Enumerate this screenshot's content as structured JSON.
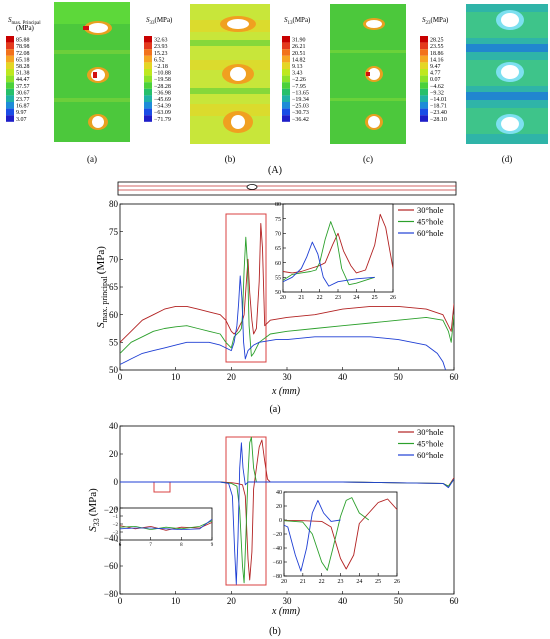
{
  "panel_A": {
    "label": "(A)",
    "sub_labels": [
      "(a)",
      "(b)",
      "(c)",
      "(d)"
    ],
    "contours": [
      {
        "title_main": "S",
        "title_sub": "max. Principal",
        "unit": "(MPa)",
        "palette": "green-red",
        "values": [
          "85.88",
          "78.98",
          "72.08",
          "65.18",
          "58.28",
          "51.38",
          "44.47",
          "37.57",
          "30.67",
          "23.77",
          "16.87",
          "9.97",
          "3.07"
        ],
        "colors": [
          "#c80000",
          "#e43b1e",
          "#f2721c",
          "#f6a623",
          "#e4d624",
          "#bfe81f",
          "#8fe22a",
          "#4cd13a",
          "#26c06a",
          "#20b2a6",
          "#1e8cd8",
          "#1a4de6",
          "#1e1ec8"
        ]
      },
      {
        "title_main": "S",
        "title_sub": "33",
        "unit": "(MPa)",
        "palette": "green-yellow",
        "values": [
          "32.63",
          "23.93",
          "15.23",
          "6.52",
          "−2.18",
          "−10.88",
          "−19.58",
          "−28.28",
          "−36.98",
          "−45.69",
          "−54.39",
          "−63.09",
          "−71.79"
        ],
        "colors": [
          "#c80000",
          "#e43b1e",
          "#f2721c",
          "#f6a623",
          "#e4d624",
          "#bfe81f",
          "#8fe22a",
          "#4cd13a",
          "#26c06a",
          "#20b2a6",
          "#1e8cd8",
          "#1a4de6",
          "#1e1ec8"
        ]
      },
      {
        "title_main": "S",
        "title_sub": "13",
        "unit": "(MPa)",
        "palette": "green",
        "values": [
          "31.90",
          "26.21",
          "20.51",
          "14.82",
          "9.13",
          "3.43",
          "−2.26",
          "−7.95",
          "−13.65",
          "−19.34",
          "−25.03",
          "−30.73",
          "−36.42"
        ],
        "colors": [
          "#c80000",
          "#e43b1e",
          "#f2721c",
          "#f6a623",
          "#e4d624",
          "#bfe81f",
          "#8fe22a",
          "#4cd13a",
          "#26c06a",
          "#20b2a6",
          "#1e8cd8",
          "#1a4de6",
          "#1e1ec8"
        ]
      },
      {
        "title_main": "S",
        "title_sub": "23",
        "unit": "(MPa)",
        "palette": "cyan-blue",
        "values": [
          "28.25",
          "23.55",
          "18.86",
          "14.16",
          "9.47",
          "4.77",
          "0.07",
          "−4.62",
          "−9.32",
          "−14.01",
          "−18.71",
          "−23.40",
          "−28.10"
        ],
        "colors": [
          "#c80000",
          "#e43b1e",
          "#f2721c",
          "#f6a623",
          "#e4d624",
          "#bfe81f",
          "#8fe22a",
          "#4cd13a",
          "#26c06a",
          "#20b2a6",
          "#1e8cd8",
          "#1a4de6",
          "#1e1ec8"
        ]
      }
    ]
  },
  "chart_data": [
    {
      "type": "line",
      "panel_label": "(a)",
      "xlabel": "x (mm)",
      "ylabel_main": "S",
      "ylabel_sub": "max. principal",
      "ylabel_unit": "(MPa)",
      "xlim": [
        0,
        60
      ],
      "ylim": [
        50,
        80
      ],
      "xticks": [
        "0",
        "10",
        "20",
        "30",
        "40",
        "50",
        "60"
      ],
      "yticks": [
        "50",
        "55",
        "60",
        "65",
        "70",
        "75",
        "80"
      ],
      "highlight_box_x": [
        19,
        26
      ],
      "legend_position": "top-right",
      "series": [
        {
          "name": "30°hole",
          "color": "#b22222",
          "points": [
            [
              0,
              55
            ],
            [
              2,
              57
            ],
            [
              4,
              59
            ],
            [
              6,
              60
            ],
            [
              8,
              61
            ],
            [
              10,
              61.5
            ],
            [
              12,
              61.5
            ],
            [
              14,
              61
            ],
            [
              16,
              60.5
            ],
            [
              18,
              60
            ],
            [
              19,
              59
            ],
            [
              20,
              57
            ],
            [
              20.5,
              56.5
            ],
            [
              21,
              57
            ],
            [
              21.5,
              58
            ],
            [
              22,
              59
            ],
            [
              22.3,
              60
            ],
            [
              22.7,
              66
            ],
            [
              23,
              70
            ],
            [
              23.3,
              64
            ],
            [
              23.7,
              59
            ],
            [
              24,
              56.5
            ],
            [
              24.5,
              57.5
            ],
            [
              25,
              66
            ],
            [
              25.3,
              76.5
            ],
            [
              25.6,
              72
            ],
            [
              26,
              58
            ],
            [
              27,
              59
            ],
            [
              30,
              59.5
            ],
            [
              35,
              60
            ],
            [
              40,
              61
            ],
            [
              45,
              61.5
            ],
            [
              50,
              61.5
            ],
            [
              55,
              61
            ],
            [
              58,
              60
            ],
            [
              59,
              58
            ],
            [
              59.5,
              57
            ],
            [
              60,
              62
            ]
          ]
        },
        {
          "name": "45°hole",
          "color": "#2ca02c",
          "points": [
            [
              0,
              53
            ],
            [
              2,
              55
            ],
            [
              4,
              56
            ],
            [
              6,
              57
            ],
            [
              8,
              57.5
            ],
            [
              10,
              57.8
            ],
            [
              12,
              58
            ],
            [
              14,
              57.5
            ],
            [
              16,
              57
            ],
            [
              18,
              56.5
            ],
            [
              19,
              55
            ],
            [
              20,
              54
            ],
            [
              20.5,
              56
            ],
            [
              21,
              56.5
            ],
            [
              21.5,
              57
            ],
            [
              21.8,
              57.5
            ],
            [
              22,
              60
            ],
            [
              22.3,
              68
            ],
            [
              22.6,
              74
            ],
            [
              22.9,
              69
            ],
            [
              23.2,
              58
            ],
            [
              23.6,
              52.5
            ],
            [
              24,
              53
            ],
            [
              25,
              55
            ],
            [
              27,
              56.5
            ],
            [
              30,
              57
            ],
            [
              35,
              57.5
            ],
            [
              40,
              58
            ],
            [
              45,
              58.5
            ],
            [
              50,
              59
            ],
            [
              55,
              59.5
            ],
            [
              58,
              59
            ],
            [
              59,
              57
            ],
            [
              59.5,
              55
            ],
            [
              60,
              60
            ]
          ]
        },
        {
          "name": "60°hole",
          "color": "#1f3fd4",
          "points": [
            [
              0,
              51
            ],
            [
              2,
              52
            ],
            [
              4,
              53
            ],
            [
              6,
              53.5
            ],
            [
              8,
              54
            ],
            [
              10,
              54.5
            ],
            [
              12,
              55
            ],
            [
              14,
              55
            ],
            [
              16,
              55
            ],
            [
              18,
              54.5
            ],
            [
              19,
              54
            ],
            [
              20,
              53.5
            ],
            [
              20.5,
              55
            ],
            [
              21,
              58
            ],
            [
              21.3,
              62
            ],
            [
              21.6,
              67
            ],
            [
              21.9,
              63
            ],
            [
              22.2,
              55
            ],
            [
              22.5,
              52
            ],
            [
              23,
              53.5
            ],
            [
              24,
              54.5
            ],
            [
              25,
              55
            ],
            [
              28,
              55.5
            ],
            [
              30,
              55.5
            ],
            [
              35,
              56
            ],
            [
              40,
              56
            ],
            [
              45,
              56
            ],
            [
              50,
              55.5
            ],
            [
              55,
              54.5
            ],
            [
              57,
              53
            ],
            [
              58,
              51.5
            ],
            [
              58.5,
              50
            ]
          ]
        }
      ],
      "inset": {
        "xlim": [
          20,
          26
        ],
        "ylim": [
          50,
          80
        ],
        "xticks": [
          "20",
          "21",
          "22",
          "23",
          "24",
          "25",
          "26"
        ],
        "yticks": [
          "50",
          "55",
          "60",
          "65",
          "70",
          "75",
          "80"
        ]
      }
    },
    {
      "type": "line",
      "panel_label": "(b)",
      "xlabel": "x (mm)",
      "ylabel_main": "S",
      "ylabel_sub": "33",
      "ylabel_unit": "(MPa)",
      "xlim": [
        0,
        60
      ],
      "ylim": [
        -80,
        40
      ],
      "xticks": [
        "0",
        "10",
        "20",
        "30",
        "40",
        "50",
        "60"
      ],
      "yticks": [
        "−80",
        "−60",
        "−40",
        "−20",
        "0",
        "20",
        "40"
      ],
      "highlight_box_x": [
        19,
        26
      ],
      "legend_position": "top-right",
      "series": [
        {
          "name": "30°hole",
          "color": "#b22222",
          "points": [
            [
              0,
              0
            ],
            [
              18,
              0
            ],
            [
              20,
              -0.5
            ],
            [
              21,
              -1
            ],
            [
              22,
              -2
            ],
            [
              22.5,
              -10
            ],
            [
              23,
              -55
            ],
            [
              23.3,
              -70
            ],
            [
              23.7,
              -50
            ],
            [
              24,
              -5
            ],
            [
              24.5,
              10
            ],
            [
              25,
              25
            ],
            [
              25.5,
              30
            ],
            [
              26,
              15
            ],
            [
              26.5,
              2
            ],
            [
              27,
              0
            ],
            [
              40,
              0
            ],
            [
              58,
              -1
            ],
            [
              59,
              -3
            ],
            [
              60,
              3
            ]
          ]
        },
        {
          "name": "45°hole",
          "color": "#2ca02c",
          "points": [
            [
              0,
              0
            ],
            [
              18,
              0
            ],
            [
              20,
              -1
            ],
            [
              21,
              -3
            ],
            [
              21.5,
              -20
            ],
            [
              22,
              -60
            ],
            [
              22.3,
              -72
            ],
            [
              22.6,
              -40
            ],
            [
              23,
              5
            ],
            [
              23.3,
              28
            ],
            [
              23.6,
              32
            ],
            [
              24,
              10
            ],
            [
              24.5,
              0
            ],
            [
              40,
              0
            ],
            [
              58,
              -1
            ],
            [
              59,
              -3
            ],
            [
              60,
              2
            ]
          ]
        },
        {
          "name": "60°hole",
          "color": "#1f3fd4",
          "points": [
            [
              0,
              0
            ],
            [
              18,
              0
            ],
            [
              19.5,
              -1
            ],
            [
              20.2,
              -10
            ],
            [
              20.6,
              -50
            ],
            [
              20.9,
              -73
            ],
            [
              21.2,
              -40
            ],
            [
              21.5,
              10
            ],
            [
              21.8,
              28
            ],
            [
              22.1,
              10
            ],
            [
              22.5,
              -2
            ],
            [
              23,
              0
            ],
            [
              40,
              0
            ],
            [
              58,
              -1
            ],
            [
              59,
              -4
            ],
            [
              60,
              2
            ]
          ]
        }
      ],
      "inset_left": {
        "xlim": [
          6,
          9
        ],
        "ylim": [
          -4,
          0
        ],
        "xticks": [
          "6",
          "7",
          "8",
          "9"
        ],
        "yticks": [
          "0",
          "−1",
          "−2",
          "−3",
          "−4"
        ]
      },
      "inset_right": {
        "xlim": [
          20,
          26
        ],
        "ylim": [
          -80,
          40
        ],
        "xticks": [
          "20",
          "21",
          "22",
          "23",
          "24",
          "25",
          "26"
        ],
        "yticks": [
          "40",
          "20",
          "0",
          "−20",
          "−40",
          "−60",
          "−80"
        ]
      }
    }
  ]
}
